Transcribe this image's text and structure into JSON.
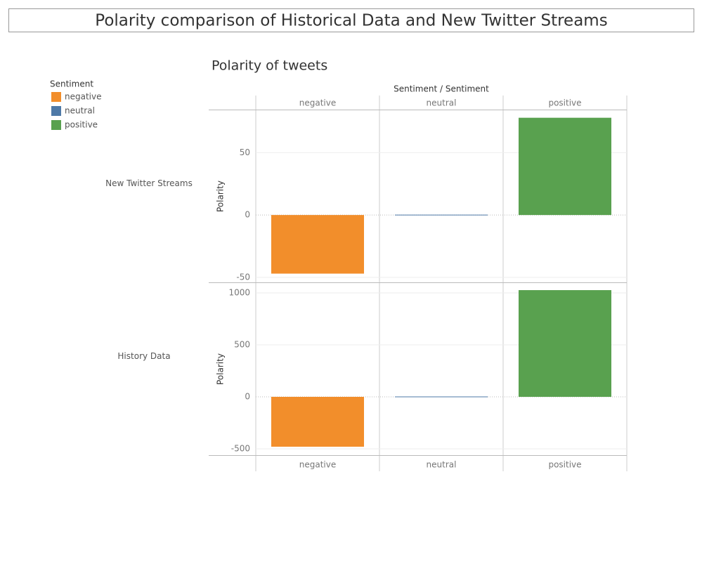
{
  "dashboard_title": "Polarity comparison of Historical Data and New Twitter Streams",
  "chart_data": {
    "type": "bar",
    "title": "Polarity of tweets",
    "column_header": "Sentiment / Sentiment",
    "legend_title": "Sentiment",
    "categories": [
      "negative",
      "neutral",
      "positive"
    ],
    "colors": [
      "#f28e2b",
      "#4e79a7",
      "#59a14f"
    ],
    "grid": true,
    "panels": [
      {
        "name": "New Twitter Streams",
        "y_label": "Polarity",
        "values": [
          -47,
          0,
          78
        ],
        "ylim": [
          -54,
          84
        ],
        "yticks": [
          -50,
          0,
          50
        ]
      },
      {
        "name": "History Data",
        "y_label": "Polarity",
        "values": [
          -480,
          0,
          1027
        ],
        "ylim": [
          -561,
          1095
        ],
        "yticks": [
          -500,
          0,
          500,
          1000
        ]
      }
    ]
  }
}
